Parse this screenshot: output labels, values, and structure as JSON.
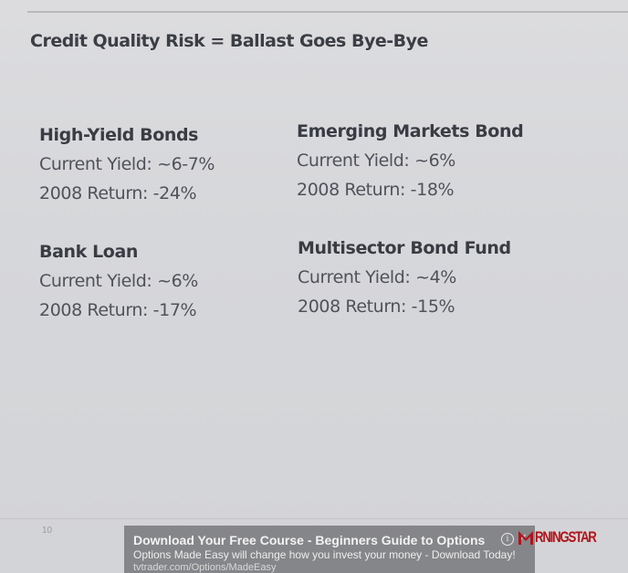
{
  "slide": {
    "title": "Credit Quality Risk = Ballast Goes Bye-Bye",
    "page_number": "10",
    "blocks": [
      {
        "heading": "High-Yield Bonds",
        "yield": "Current Yield: ~6-7%",
        "return": "2008 Return: -24%"
      },
      {
        "heading": "Emerging Markets Bond",
        "yield": "Current Yield: ~6%",
        "return": "2008 Return: -18%"
      },
      {
        "heading": "Bank Loan",
        "yield": "Current Yield: ~6%",
        "return": "2008 Return: -17%"
      },
      {
        "heading": "Multisector Bond Fund",
        "yield": "Current Yield: ~4%",
        "return": "2008 Return: -15%"
      }
    ]
  },
  "ad": {
    "title": "Download Your Free Course - Beginners Guide to Options",
    "description": "Options Made Easy will change how you invest your money - Download Today!",
    "url": "tvtrader.com/Options/MadeEasy",
    "info_icon": "info-icon",
    "info_glyph": "i",
    "close_icon": "close-icon",
    "close_glyph": "×"
  },
  "logo": {
    "text": "RNINGSTAR",
    "color": "#b0141b"
  }
}
